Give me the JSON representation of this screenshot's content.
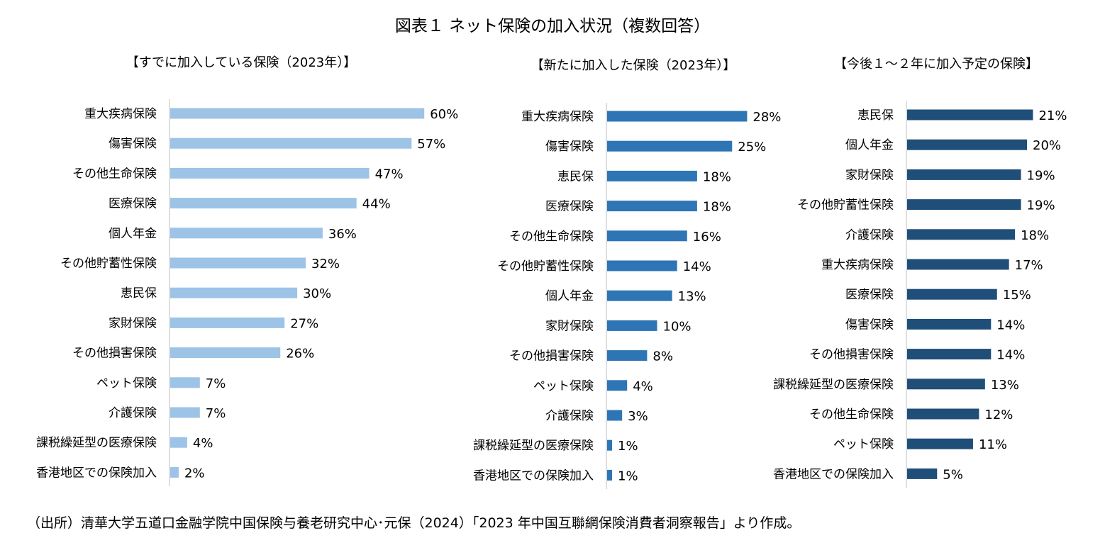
{
  "title": "図表１ ネット保険の加入状況（複数回答）",
  "source": "（出所）清華大学五道口金融学院中国保険与養老研究中心･元保（2024）「2023 年中国互聯網保険消費者洞察報告」より作成。",
  "chart_data": [
    {
      "type": "bar",
      "orientation": "horizontal",
      "title": "【すでに加入している保険（2023年）】",
      "color": "#9DC3E6",
      "unit": "%",
      "xlim": [
        0,
        60
      ],
      "categories": [
        "重大疾病保険",
        "傷害保険",
        "その他生命保険",
        "医療保険",
        "個人年金",
        "その他貯蓄性保険",
        "恵民保",
        "家財保険",
        "その他損害保険",
        "ペット保険",
        "介護保険",
        "課税繰延型の医療保険",
        "香港地区での保険加入"
      ],
      "values": [
        60,
        57,
        47,
        44,
        36,
        32,
        30,
        27,
        26,
        7,
        7,
        4,
        2
      ]
    },
    {
      "type": "bar",
      "orientation": "horizontal",
      "title": "【新たに加入した保険（2023年）】",
      "color": "#2E75B6",
      "unit": "%",
      "xlim": [
        0,
        28
      ],
      "categories": [
        "重大疾病保険",
        "傷害保険",
        "恵民保",
        "医療保険",
        "その他生命保険",
        "その他貯蓄性保険",
        "個人年金",
        "家財保険",
        "その他損害保険",
        "ペット保険",
        "介護保険",
        "課税繰延型の医療保険",
        "香港地区での保険加入"
      ],
      "values": [
        28,
        25,
        18,
        18,
        16,
        14,
        13,
        10,
        8,
        4,
        3,
        1,
        1
      ]
    },
    {
      "type": "bar",
      "orientation": "horizontal",
      "title": "【今後１～２年に加入予定の保険】",
      "color": "#1F4E79",
      "unit": "%",
      "xlim": [
        0,
        21
      ],
      "categories": [
        "恵民保",
        "個人年金",
        "家財保険",
        "その他貯蓄性保険",
        "介護保険",
        "重大疾病保険",
        "医療保険",
        "傷害保険",
        "その他損害保険",
        "課税繰延型の医療保険",
        "その他生命保険",
        "ペット保険",
        "香港地区での保険加入"
      ],
      "values": [
        21,
        20,
        19,
        19,
        18,
        17,
        15,
        14,
        14,
        13,
        12,
        11,
        5
      ]
    }
  ]
}
